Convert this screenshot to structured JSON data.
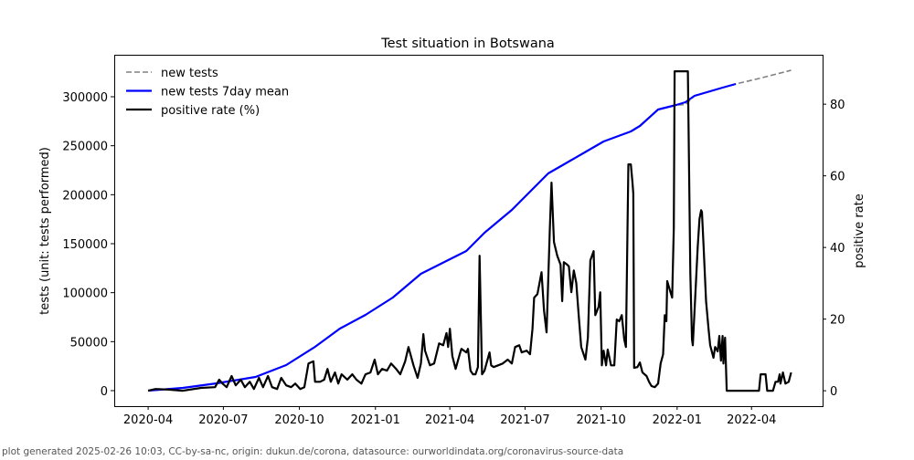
{
  "chart_data": {
    "type": "line",
    "title": "Test situation in Botswana",
    "x_unit": "days since 2020-04-01",
    "x_start": "2020-04-01",
    "xlim": [
      -41,
      816
    ],
    "xticks": [
      {
        "day": 0,
        "label": "2020-04"
      },
      {
        "day": 91,
        "label": "2020-07"
      },
      {
        "day": 183,
        "label": "2020-10"
      },
      {
        "day": 275,
        "label": "2021-01"
      },
      {
        "day": 365,
        "label": "2021-04"
      },
      {
        "day": 456,
        "label": "2021-07"
      },
      {
        "day": 548,
        "label": "2021-10"
      },
      {
        "day": 640,
        "label": "2022-01"
      },
      {
        "day": 730,
        "label": "2022-04"
      }
    ],
    "ylabel": "tests (unit: tests performed)",
    "ylim": [
      -15840,
      342870
    ],
    "yticks": [
      0,
      50000,
      100000,
      150000,
      200000,
      250000,
      300000
    ],
    "ylabel_right": "positive rate",
    "ylim_right": [
      -4.3,
      93.8
    ],
    "yticks_right": [
      0,
      20,
      40,
      60,
      80
    ],
    "legend_position": "top-left",
    "series": [
      {
        "name": "new tests",
        "axis": "left",
        "color": "#808080",
        "style": "dashed",
        "points": [
          [
            0,
            0
          ],
          [
            42,
            2795
          ],
          [
            83,
            7453
          ],
          [
            130,
            13975
          ],
          [
            167,
            26088
          ],
          [
            202,
            44722
          ],
          [
            232,
            63356
          ],
          [
            263,
            77331
          ],
          [
            296,
            95034
          ],
          [
            330,
            119258
          ],
          [
            363,
            133234
          ],
          [
            385,
            142551
          ],
          [
            407,
            161185
          ],
          [
            440,
            184478
          ],
          [
            484,
            221746
          ],
          [
            507,
            232927
          ],
          [
            551,
            254356
          ],
          [
            584,
            264604
          ],
          [
            595,
            270195
          ],
          [
            617,
            286965
          ],
          [
            639,
            291624
          ],
          [
            650,
            292000
          ],
          [
            661,
            300941
          ],
          [
            695,
            309326
          ],
          [
            711,
            313053
          ],
          [
            739,
            318651
          ],
          [
            778,
            327036
          ]
        ]
      },
      {
        "name": "new tests 7day mean",
        "axis": "left",
        "color": "#0000ff",
        "style": "solid",
        "points": [
          [
            0,
            0
          ],
          [
            42,
            2795
          ],
          [
            83,
            7453
          ],
          [
            130,
            13975
          ],
          [
            167,
            26088
          ],
          [
            202,
            44722
          ],
          [
            232,
            63356
          ],
          [
            263,
            77331
          ],
          [
            296,
            95034
          ],
          [
            330,
            119258
          ],
          [
            363,
            133234
          ],
          [
            385,
            142551
          ],
          [
            407,
            161185
          ],
          [
            440,
            184478
          ],
          [
            484,
            221746
          ],
          [
            507,
            232927
          ],
          [
            551,
            254356
          ],
          [
            584,
            264604
          ],
          [
            595,
            270195
          ],
          [
            617,
            286965
          ],
          [
            639,
            291624
          ],
          [
            650,
            294419
          ],
          [
            661,
            300941
          ],
          [
            695,
            309326
          ],
          [
            711,
            313053
          ]
        ]
      },
      {
        "name": "positive rate (%)",
        "axis": "right",
        "color": "#000000",
        "style": "solid",
        "points": [
          [
            0,
            0
          ],
          [
            9,
            0.5
          ],
          [
            25,
            0.3
          ],
          [
            42,
            0
          ],
          [
            64,
            0.8
          ],
          [
            81,
            1.0
          ],
          [
            86,
            3.1
          ],
          [
            90,
            2.0
          ],
          [
            95,
            1.0
          ],
          [
            101,
            4.1
          ],
          [
            106,
            1.5
          ],
          [
            112,
            3.1
          ],
          [
            117,
            1.0
          ],
          [
            123,
            2.5
          ],
          [
            128,
            0.5
          ],
          [
            134,
            3.6
          ],
          [
            139,
            1.0
          ],
          [
            145,
            4.1
          ],
          [
            150,
            1.0
          ],
          [
            156,
            0.5
          ],
          [
            161,
            3.6
          ],
          [
            167,
            1.5
          ],
          [
            173,
            1.0
          ],
          [
            178,
            2.0
          ],
          [
            184,
            0.5
          ],
          [
            189,
            1.0
          ],
          [
            194,
            7.6
          ],
          [
            200,
            8.2
          ],
          [
            202,
            2.5
          ],
          [
            208,
            2.5
          ],
          [
            213,
            3.1
          ],
          [
            217,
            6.1
          ],
          [
            221,
            2.5
          ],
          [
            226,
            5.1
          ],
          [
            230,
            2.0
          ],
          [
            234,
            4.6
          ],
          [
            241,
            3.1
          ],
          [
            247,
            4.6
          ],
          [
            252,
            3.1
          ],
          [
            258,
            2.0
          ],
          [
            263,
            4.6
          ],
          [
            269,
            5.1
          ],
          [
            274,
            8.7
          ],
          [
            278,
            4.6
          ],
          [
            283,
            6.1
          ],
          [
            289,
            5.6
          ],
          [
            294,
            7.6
          ],
          [
            300,
            6.1
          ],
          [
            305,
            4.6
          ],
          [
            311,
            8.2
          ],
          [
            315,
            12.2
          ],
          [
            321,
            7.1
          ],
          [
            326,
            3.6
          ],
          [
            330,
            7.6
          ],
          [
            333,
            15.8
          ],
          [
            335,
            11.2
          ],
          [
            341,
            7.1
          ],
          [
            346,
            7.6
          ],
          [
            352,
            13.2
          ],
          [
            357,
            12.7
          ],
          [
            361,
            16.1
          ],
          [
            363,
            12.2
          ],
          [
            365,
            17.3
          ],
          [
            368,
            9.7
          ],
          [
            372,
            6.1
          ],
          [
            377,
            10.2
          ],
          [
            379,
            11.7
          ],
          [
            385,
            10.7
          ],
          [
            387,
            11.7
          ],
          [
            390,
            5.6
          ],
          [
            393,
            4.6
          ],
          [
            396,
            4.6
          ],
          [
            399,
            6.6
          ],
          [
            401,
            37.7
          ],
          [
            404,
            4.6
          ],
          [
            407,
            5.6
          ],
          [
            413,
            10.7
          ],
          [
            415,
            7.1
          ],
          [
            418,
            6.6
          ],
          [
            429,
            7.6
          ],
          [
            435,
            8.7
          ],
          [
            440,
            7.6
          ],
          [
            444,
            12.2
          ],
          [
            449,
            12.7
          ],
          [
            452,
            10.7
          ],
          [
            458,
            11.2
          ],
          [
            462,
            10.2
          ],
          [
            465,
            17.3
          ],
          [
            467,
            26.0
          ],
          [
            471,
            27.0
          ],
          [
            476,
            33.1
          ],
          [
            479,
            22.4
          ],
          [
            482,
            16.3
          ],
          [
            486,
            45.4
          ],
          [
            488,
            58.1
          ],
          [
            491,
            41.5
          ],
          [
            495,
            37.7
          ],
          [
            499,
            35.2
          ],
          [
            501,
            25.0
          ],
          [
            503,
            35.9
          ],
          [
            507,
            35.2
          ],
          [
            509,
            34.7
          ],
          [
            512,
            27.5
          ],
          [
            515,
            33.6
          ],
          [
            518,
            30.1
          ],
          [
            521,
            20.9
          ],
          [
            524,
            12.2
          ],
          [
            529,
            8.7
          ],
          [
            532,
            14.8
          ],
          [
            535,
            36.4
          ],
          [
            539,
            39.0
          ],
          [
            541,
            21.1
          ],
          [
            545,
            23.4
          ],
          [
            547,
            27.5
          ],
          [
            549,
            7.1
          ],
          [
            551,
            11.2
          ],
          [
            554,
            7.1
          ],
          [
            556,
            11.5
          ],
          [
            560,
            7.1
          ],
          [
            564,
            7.1
          ],
          [
            567,
            19.9
          ],
          [
            570,
            19.4
          ],
          [
            573,
            21.1
          ],
          [
            576,
            14.3
          ],
          [
            578,
            12.2
          ],
          [
            581,
            63.2
          ],
          [
            584,
            63.2
          ],
          [
            586,
            58.1
          ],
          [
            587,
            55.0
          ],
          [
            588,
            6.4
          ],
          [
            592,
            6.6
          ],
          [
            595,
            7.9
          ],
          [
            598,
            5.1
          ],
          [
            603,
            4.1
          ],
          [
            606,
            2.5
          ],
          [
            609,
            1.3
          ],
          [
            613,
            1.0
          ],
          [
            617,
            2.0
          ],
          [
            620,
            7.6
          ],
          [
            623,
            10.2
          ],
          [
            625,
            21.1
          ],
          [
            627,
            19.4
          ],
          [
            628,
            30.6
          ],
          [
            632,
            27.5
          ],
          [
            634,
            26.0
          ],
          [
            636,
            45.4
          ],
          [
            637,
            89.2
          ],
          [
            653,
            89.2
          ],
          [
            656,
            32.6
          ],
          [
            658,
            14.3
          ],
          [
            659,
            12.7
          ],
          [
            661,
            21.9
          ],
          [
            665,
            40.3
          ],
          [
            667,
            47.9
          ],
          [
            669,
            50.4
          ],
          [
            670,
            49.9
          ],
          [
            672,
            40.3
          ],
          [
            675,
            25.0
          ],
          [
            678,
            17.3
          ],
          [
            680,
            12.7
          ],
          [
            684,
            9.2
          ],
          [
            686,
            12.2
          ],
          [
            689,
            11.0
          ],
          [
            691,
            15.3
          ],
          [
            693,
            8.4
          ],
          [
            695,
            15.3
          ],
          [
            696,
            7.6
          ],
          [
            698,
            14.8
          ],
          [
            700,
            0
          ],
          [
            731,
            0
          ],
          [
            739,
            0
          ],
          [
            741,
            4.6
          ],
          [
            747,
            4.6
          ],
          [
            749,
            0
          ],
          [
            756,
            0
          ],
          [
            759,
            2.5
          ],
          [
            762,
            2.5
          ],
          [
            764,
            4.6
          ],
          [
            765,
            2.0
          ],
          [
            768,
            5.1
          ],
          [
            771,
            2.0
          ],
          [
            775,
            2.5
          ],
          [
            778,
            5.1
          ]
        ]
      }
    ]
  },
  "footer": "plot generated 2025-02-26 10:03, CC-by-sa-nc, origin: dukun.de/corona, datasource: ourworldindata.org/coronavirus-source-data"
}
